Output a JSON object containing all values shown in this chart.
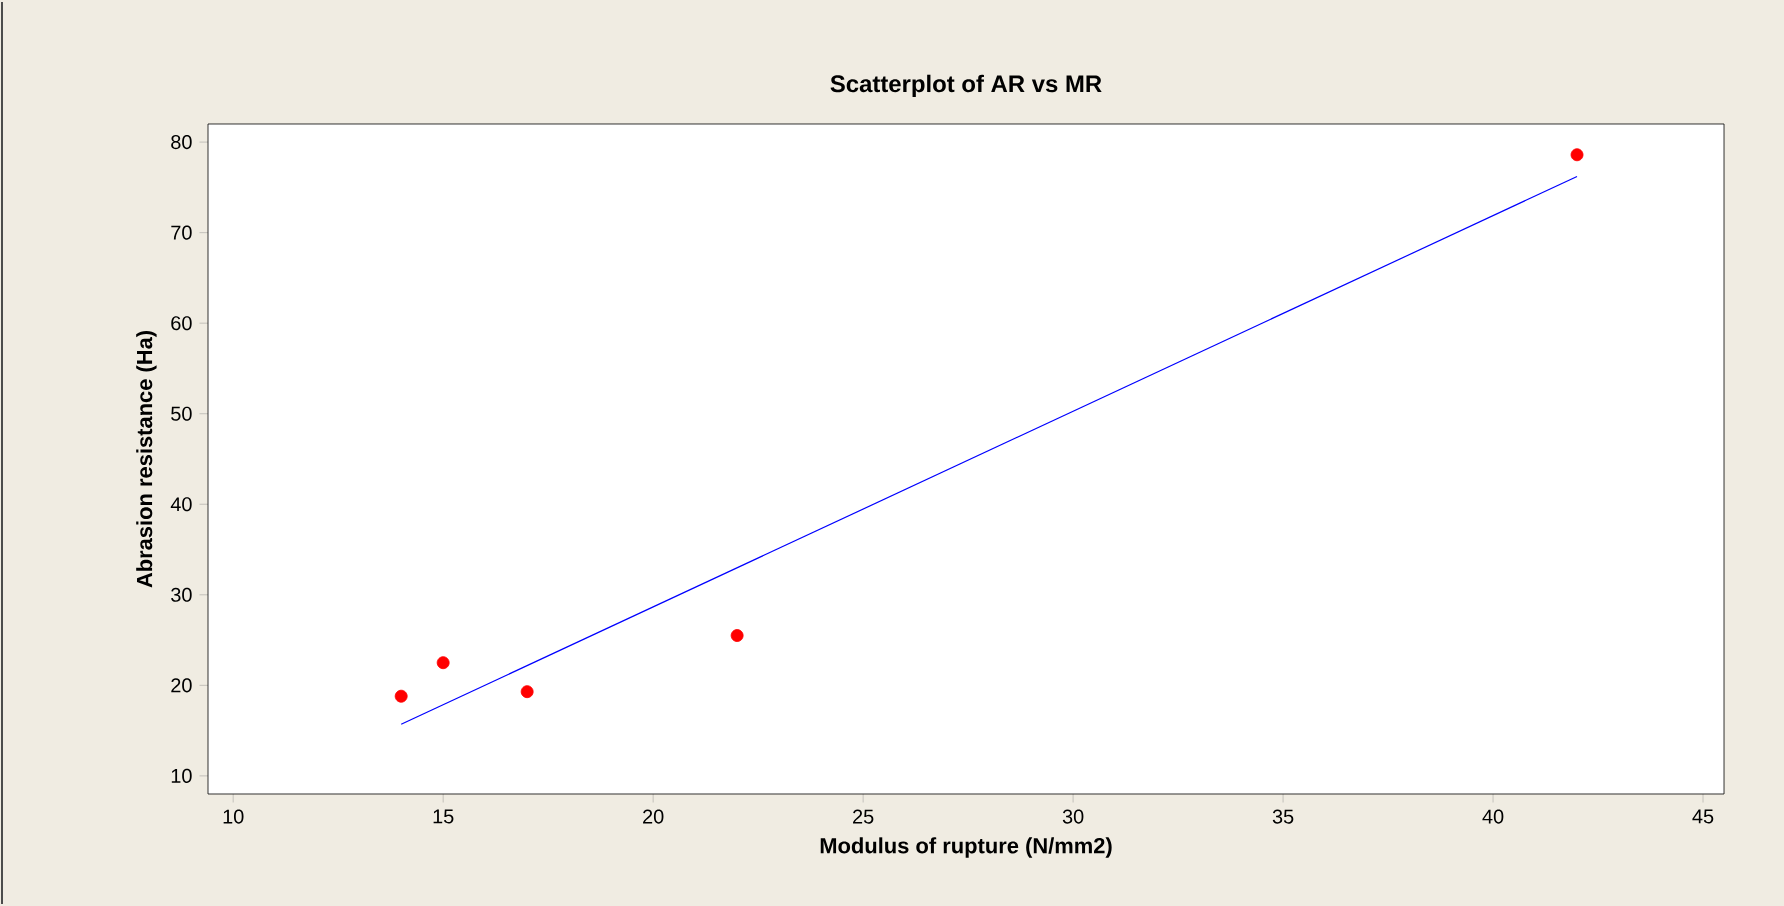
{
  "chart_data": {
    "type": "scatter",
    "title": "Scatterplot of AR vs MR",
    "xlabel": "Modulus of rupture (N/mm2)",
    "ylabel": "Abrasion resistance (Ha)",
    "xlim": [
      9.4,
      45.5
    ],
    "ylim": [
      8,
      82
    ],
    "xticks": [
      10,
      15,
      20,
      25,
      30,
      35,
      40,
      45
    ],
    "yticks": [
      10,
      20,
      30,
      40,
      50,
      60,
      70,
      80
    ],
    "grid": false,
    "series": [
      {
        "color": "#ff0000",
        "marker": "circle",
        "x": [
          14,
          15,
          17,
          22,
          42
        ],
        "values": [
          18.8,
          22.5,
          19.3,
          25.5,
          78.6
        ]
      },
      {
        "type": "line",
        "color": "#0000ff",
        "marker": "none",
        "line_style": "solid",
        "x": [
          14,
          42
        ],
        "values": [
          15.7,
          76.2
        ]
      }
    ]
  }
}
